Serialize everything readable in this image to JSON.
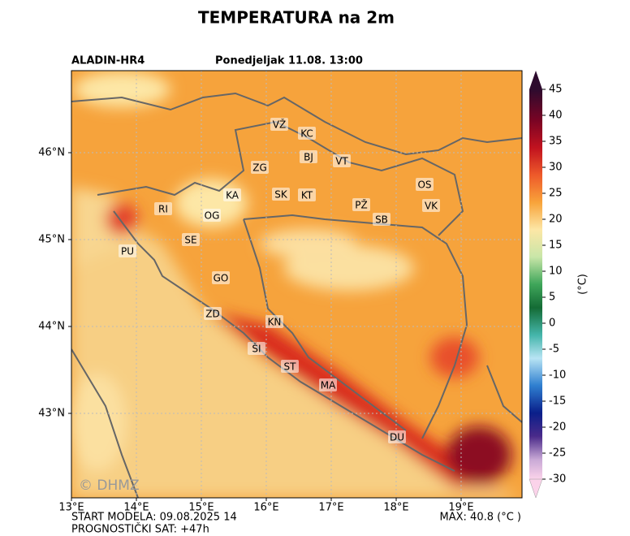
{
  "header": {
    "title": "TEMPERATURA na 2m",
    "model": "ALADIN-HR4",
    "time": "Ponedjeljak 11.08. 13:00"
  },
  "map": {
    "lon_labels": [
      "13°E",
      "14°E",
      "15°E",
      "16°E",
      "17°E",
      "18°E",
      "19°E"
    ],
    "lat_labels": [
      "46°N",
      "45°N",
      "44°N",
      "43°N"
    ],
    "cities": [
      "VŽ",
      "KC",
      "BJ",
      "VT",
      "ZG",
      "OS",
      "KA",
      "SK",
      "KT",
      "PŽ",
      "VK",
      "RI",
      "OG",
      "SB",
      "SE",
      "PU",
      "GO",
      "ZD",
      "KN",
      "ŠI",
      "ST",
      "MA",
      "DU"
    ],
    "watermark": "© DHMZ"
  },
  "colorbar": {
    "ticks": [
      45,
      40,
      35,
      30,
      25,
      20,
      15,
      10,
      5,
      0,
      -5,
      -10,
      -15,
      -20,
      -25,
      -30
    ],
    "unit": "(°C)"
  },
  "footer": {
    "start": "START MODELA: 09.08.2025 14",
    "hour": "PROGNOSTIČKI SAT: +47h",
    "max": "MAX: 40.8 (°C )"
  }
}
